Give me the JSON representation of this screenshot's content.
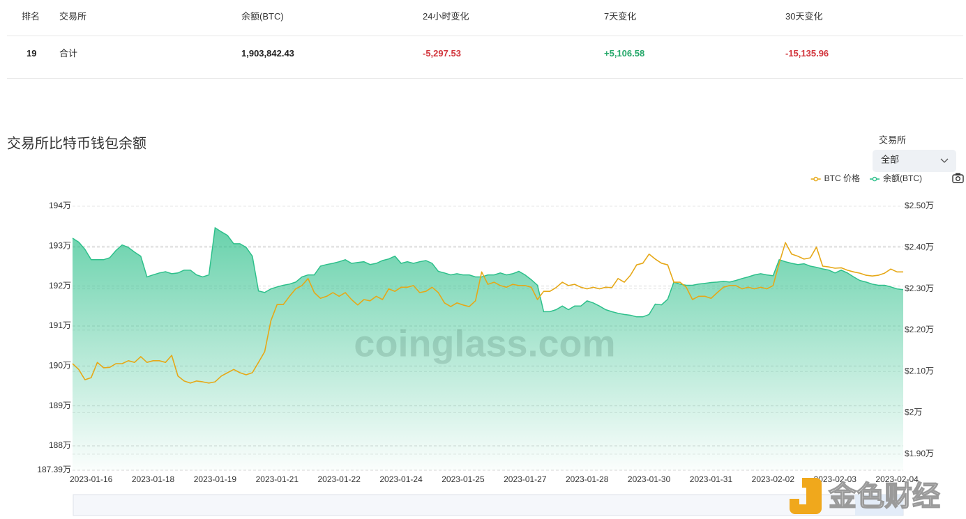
{
  "table": {
    "headers": [
      "排名",
      "交易所",
      "余额(BTC)",
      "24小时变化",
      "7天变化",
      "30天变化"
    ],
    "rows": [
      [
        "19",
        "合计",
        "1,903,842.43",
        "-5,297.53",
        "+5,106.58",
        "-15,135.96"
      ]
    ]
  },
  "chart_data": {
    "type": "line",
    "title": "交易所比特币钱包余额",
    "filter_label": "交易所",
    "filter_value": "全部",
    "watermark": "coinglass.com",
    "source_logo": "金色财经",
    "categories": [
      null,
      null,
      null,
      "2023-01-16",
      null,
      null,
      null,
      null,
      null,
      null,
      null,
      null,
      null,
      "2023-01-18",
      null,
      null,
      null,
      null,
      null,
      null,
      null,
      null,
      null,
      "2023-01-19",
      null,
      null,
      null,
      null,
      null,
      null,
      null,
      null,
      null,
      "2023-01-21",
      null,
      null,
      null,
      null,
      null,
      null,
      null,
      null,
      null,
      "2023-01-22",
      null,
      null,
      null,
      null,
      null,
      null,
      null,
      null,
      null,
      "2023-01-24",
      null,
      null,
      null,
      null,
      null,
      null,
      null,
      null,
      null,
      "2023-01-25",
      null,
      null,
      null,
      null,
      null,
      null,
      null,
      null,
      null,
      "2023-01-27",
      null,
      null,
      null,
      null,
      null,
      null,
      null,
      null,
      null,
      "2023-01-28",
      null,
      null,
      null,
      null,
      null,
      null,
      null,
      null,
      null,
      "2023-01-30",
      null,
      null,
      null,
      null,
      null,
      null,
      null,
      null,
      null,
      "2023-01-31",
      null,
      null,
      null,
      null,
      null,
      null,
      null,
      null,
      null,
      "2023-02-02",
      null,
      null,
      null,
      null,
      null,
      null,
      null,
      null,
      null,
      "2023-02-03",
      null,
      null,
      null,
      null,
      null,
      null,
      null,
      null,
      null,
      "2023-02-04",
      null
    ],
    "series": [
      {
        "name": "BTC 价格",
        "color": "#e6a817",
        "type": "line",
        "axis": "y2",
        "values": [
          2.119,
          2.105,
          2.08,
          2.085,
          2.122,
          2.109,
          2.11,
          2.119,
          2.119,
          2.126,
          2.122,
          2.136,
          2.122,
          2.126,
          2.126,
          2.122,
          2.139,
          2.089,
          2.077,
          2.072,
          2.077,
          2.075,
          2.072,
          2.075,
          2.089,
          2.097,
          2.105,
          2.097,
          2.092,
          2.097,
          2.122,
          2.148,
          2.223,
          2.262,
          2.262,
          2.282,
          2.3,
          2.308,
          2.325,
          2.291,
          2.277,
          2.282,
          2.291,
          2.282,
          2.291,
          2.274,
          2.261,
          2.274,
          2.271,
          2.282,
          2.274,
          2.3,
          2.294,
          2.304,
          2.304,
          2.308,
          2.291,
          2.294,
          2.304,
          2.291,
          2.266,
          2.257,
          2.266,
          2.261,
          2.257,
          2.271,
          2.341,
          2.311,
          2.316,
          2.308,
          2.304,
          2.311,
          2.308,
          2.308,
          2.304,
          2.274,
          2.294,
          2.294,
          2.303,
          2.316,
          2.308,
          2.311,
          2.304,
          2.3,
          2.304,
          2.3,
          2.304,
          2.303,
          2.325,
          2.316,
          2.333,
          2.358,
          2.362,
          2.384,
          2.372,
          2.362,
          2.358,
          2.316,
          2.316,
          2.304,
          2.274,
          2.282,
          2.282,
          2.277,
          2.291,
          2.304,
          2.308,
          2.308,
          2.3,
          2.304,
          2.3,
          2.304,
          2.3,
          2.308,
          2.362,
          2.412,
          2.384,
          2.379,
          2.372,
          2.375,
          2.401,
          2.355,
          2.353,
          2.35,
          2.351,
          2.345,
          2.341,
          2.338,
          2.333,
          2.331,
          2.333,
          2.338,
          2.348,
          2.341,
          2.341
        ]
      },
      {
        "name": "余额(BTC)",
        "color": "#2ec08b",
        "type": "area",
        "values": [
          193.2,
          193.1,
          192.92,
          192.66,
          192.66,
          192.66,
          192.71,
          192.89,
          193.03,
          192.97,
          192.85,
          192.75,
          192.23,
          192.28,
          192.33,
          192.36,
          192.31,
          192.33,
          192.4,
          192.4,
          192.28,
          192.23,
          192.28,
          193.46,
          193.36,
          193.27,
          193.06,
          193.06,
          192.97,
          192.75,
          191.88,
          191.84,
          191.93,
          191.98,
          192.02,
          192.05,
          192.1,
          192.23,
          192.28,
          192.28,
          192.5,
          192.54,
          192.57,
          192.61,
          192.66,
          192.57,
          192.59,
          192.61,
          192.54,
          192.57,
          192.64,
          192.68,
          192.75,
          192.57,
          192.61,
          192.57,
          192.61,
          192.64,
          192.57,
          192.37,
          192.33,
          192.28,
          192.31,
          192.28,
          192.28,
          192.23,
          192.23,
          192.28,
          192.28,
          192.33,
          192.28,
          192.31,
          192.37,
          192.28,
          192.16,
          192.02,
          191.36,
          191.36,
          191.41,
          191.5,
          191.41,
          191.5,
          191.5,
          191.63,
          191.58,
          191.5,
          191.41,
          191.36,
          191.32,
          191.29,
          191.27,
          191.23,
          191.23,
          191.29,
          191.55,
          191.53,
          191.67,
          192.1,
          192.05,
          192.02,
          192.02,
          192.05,
          192.07,
          192.09,
          192.1,
          192.12,
          192.1,
          192.14,
          192.19,
          192.23,
          192.28,
          192.31,
          192.28,
          192.26,
          192.66,
          192.61,
          192.57,
          192.54,
          192.56,
          192.5,
          192.47,
          192.43,
          192.4,
          192.33,
          192.4,
          192.33,
          192.23,
          192.14,
          192.1,
          192.05,
          192.02,
          192.02,
          191.98,
          191.93,
          191.91
        ]
      }
    ],
    "ylim": [
      187.39,
      194
    ],
    "yticks": [
      {
        "value": 187.39,
        "label": "187.39万"
      },
      {
        "value": 188,
        "label": "188万"
      },
      {
        "value": 189,
        "label": "189万"
      },
      {
        "value": 190,
        "label": "190万"
      },
      {
        "value": 191,
        "label": "191万"
      },
      {
        "value": 192,
        "label": "192万"
      },
      {
        "value": 193,
        "label": "193万"
      },
      {
        "value": 194,
        "label": "194万"
      }
    ],
    "y2lim": [
      1.861,
      2.5
    ],
    "y2ticks": [
      {
        "value": 1.9,
        "label": "$1.90万"
      },
      {
        "value": 2,
        "label": "$2万"
      },
      {
        "value": 2.1,
        "label": "$2.10万"
      },
      {
        "value": 2.2,
        "label": "$2.20万"
      },
      {
        "value": 2.3,
        "label": "$2.30万"
      },
      {
        "value": 2.4,
        "label": "$2.40万"
      },
      {
        "value": 2.5,
        "label": "$2.50万"
      }
    ],
    "grid": true,
    "legend": "top-right"
  }
}
